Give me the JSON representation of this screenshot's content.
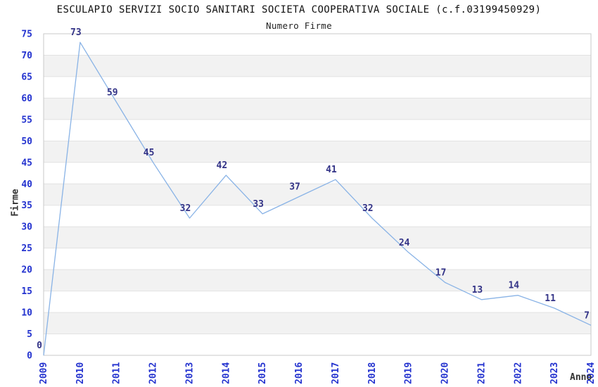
{
  "chart_data": {
    "type": "line",
    "title": "ESCULAPIO SERVIZI SOCIO SANITARI SOCIETA COOPERATIVA SOCIALE (c.f.03199450929)",
    "subtitle": "Numero Firme",
    "xlabel": "Anno",
    "ylabel": "Firme",
    "categories": [
      "2009",
      "2010",
      "2011",
      "2012",
      "2013",
      "2014",
      "2015",
      "2016",
      "2017",
      "2018",
      "2019",
      "2020",
      "2021",
      "2022",
      "2023",
      "2024"
    ],
    "values": [
      0,
      73,
      59,
      45,
      32,
      42,
      33,
      37,
      41,
      32,
      24,
      17,
      13,
      14,
      11,
      7
    ],
    "ylim": [
      0,
      75
    ],
    "ytick_step": 5,
    "grid": true,
    "legend": "none",
    "colors": {
      "line": "#89b3e6",
      "band": "#f2f2f2",
      "gridline": "#e2e2e2",
      "plot_border": "#c9c9c9",
      "tick_label": "#2433cf",
      "data_label": "#333387",
      "axis_title": "#333333",
      "title_text": "#111111"
    }
  }
}
